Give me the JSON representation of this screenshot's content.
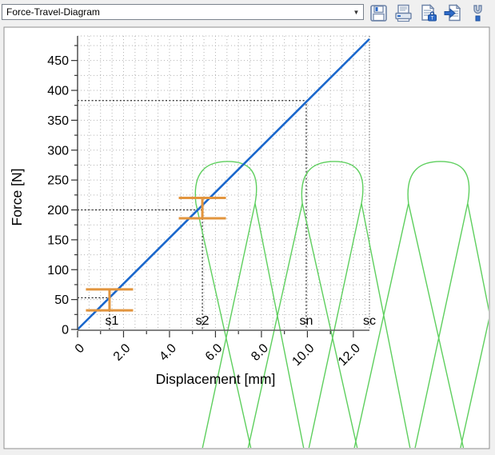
{
  "toolbar": {
    "diagram_selector": {
      "value": "Force-Travel-Diagram"
    },
    "buttons": [
      {
        "id": "save",
        "icon": "floppy-disk"
      },
      {
        "id": "print",
        "icon": "printer"
      },
      {
        "id": "document",
        "icon": "document-case"
      },
      {
        "id": "export",
        "icon": "document-arrow"
      },
      {
        "id": "settings",
        "icon": "wrench"
      }
    ]
  },
  "chart_data": {
    "type": "line",
    "xlabel": "Displacement [mm]",
    "ylabel": "Force [N]",
    "xlim": [
      0,
      12.7
    ],
    "ylim": [
      0,
      491
    ],
    "x_ticks": [
      {
        "value": 0,
        "label": "0"
      },
      {
        "value": 2,
        "label": "2.0"
      },
      {
        "value": 4,
        "label": "4.0"
      },
      {
        "value": 6,
        "label": "6.0"
      },
      {
        "value": 8,
        "label": "8.0"
      },
      {
        "value": 10,
        "label": "10.0"
      },
      {
        "value": 12,
        "label": "12.0"
      }
    ],
    "x_minor_step": 1,
    "y_ticks": [
      0,
      50,
      100,
      150,
      200,
      250,
      300,
      350,
      400,
      450
    ],
    "y_minor_step": 25,
    "grid": {
      "on": true,
      "x_step_mm": 0.5,
      "y_step_n": 25
    },
    "series": [
      {
        "name": "force-characteristic-line",
        "color": "#1a67cc",
        "points": [
          [
            0,
            0
          ],
          [
            12.7,
            486
          ]
        ]
      },
      {
        "name": "spring-coil-curve",
        "color": "#5ecf5e",
        "dome_centers_mm": [
          6.54,
          11.17,
          15.79,
          20.41
        ],
        "dome_top_force": 281,
        "shoulder_force": 211,
        "bottom_clip_force": -200,
        "first_dome_has_no_left_upstroke": true
      }
    ],
    "markers": [
      {
        "label": "s1",
        "x_mm": 1.39,
        "force": 53,
        "force_high": 67,
        "force_low": 32,
        "style": "error-bar"
      },
      {
        "label": "s2",
        "x_mm": 5.43,
        "force": 200,
        "force_high": 220,
        "force_low": 186,
        "style": "error-bar"
      },
      {
        "label": "sn",
        "x_mm": 9.95,
        "force": 383,
        "style": "crosshair"
      },
      {
        "label": "sc",
        "x_mm": 12.7,
        "style": "vertical-line"
      }
    ],
    "colors": {
      "marker_orange": "#e2953e",
      "guide_dark": "#262626",
      "grid_dots": "#b3b3b3",
      "axis": "#5a5a5a",
      "text": "#000000"
    }
  }
}
